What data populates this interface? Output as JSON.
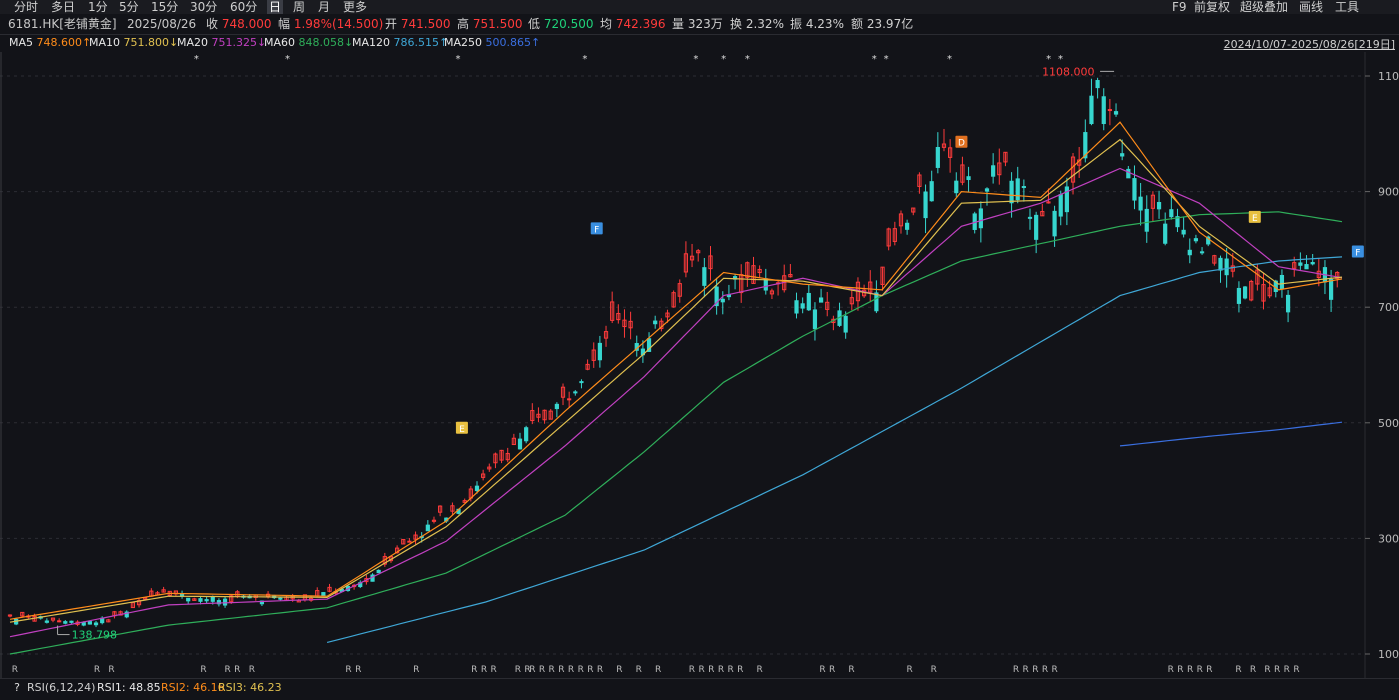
{
  "toolbar": {
    "timeframes": [
      "分时",
      "多日",
      "1分",
      "5分",
      "15分",
      "30分",
      "60分",
      "日",
      "周",
      "月",
      "更多"
    ],
    "active": "日",
    "tools": [
      "F9",
      "前复权",
      "超级叠加",
      "画线",
      "工具"
    ]
  },
  "quote": {
    "code": "6181.HK[老铺黄金]",
    "date": "2025/08/26",
    "close_label": "收",
    "close": "748.000",
    "change_label": "幅",
    "change": "1.98%(14.500)",
    "open_label": "开",
    "open": "741.500",
    "high_label": "高",
    "high": "751.500",
    "low_label": "低",
    "low": "720.500",
    "avg_label": "均",
    "avg": "742.396",
    "volume_label": "量",
    "volume": "323万",
    "turnover_label": "换",
    "turnover": "2.32%",
    "amplitude_label": "振",
    "amplitude": "4.23%",
    "amount_label": "额",
    "amount": "23.97亿"
  },
  "ma_legend": [
    {
      "name": "MA5",
      "value": "748.600↑",
      "color": "#ffffff",
      "vcolor": "#ff8c1a"
    },
    {
      "name": "MA10",
      "value": "751.800↓",
      "color": "#ffffff",
      "vcolor": "#e0c050"
    },
    {
      "name": "MA20",
      "value": "751.325↓",
      "color": "#ffffff",
      "vcolor": "#c040c0"
    },
    {
      "name": "MA60",
      "value": "848.058↓",
      "color": "#ffffff",
      "vcolor": "#2fae5a"
    },
    {
      "name": "MA120",
      "value": "786.515↑",
      "color": "#ffffff",
      "vcolor": "#3fa7d6"
    },
    {
      "name": "MA250",
      "value": "500.865↑",
      "color": "#ffffff",
      "vcolor": "#3a6fe0"
    }
  ],
  "date_range": "2024/10/07-2025/08/26[219日]",
  "indicator": {
    "help": "?",
    "name": "RSI(6,12,24)",
    "rsi1_label": "RSI1:",
    "rsi1": "48.85",
    "rsi2_label": "RSI2:",
    "rsi2": "46.16",
    "rsi3_label": "RSI3:",
    "rsi3": "46.23"
  },
  "chart_data": {
    "type": "candlestick",
    "ylim": [
      100,
      1130
    ],
    "yticks": [
      100,
      300,
      500,
      700,
      900,
      1100
    ],
    "y_tick_labels": [
      "100",
      "300",
      "500",
      "700",
      "900",
      "1100"
    ],
    "high_annotation": "1108.000",
    "low_annotation": "138.798",
    "close_path": [
      [
        0,
        165
      ],
      [
        8,
        160
      ],
      [
        16,
        155
      ],
      [
        24,
        158
      ],
      [
        32,
        180
      ],
      [
        38,
        212
      ],
      [
        44,
        200
      ],
      [
        52,
        193
      ],
      [
        60,
        198
      ],
      [
        68,
        196
      ],
      [
        74,
        190
      ],
      [
        80,
        205
      ],
      [
        86,
        212
      ],
      [
        92,
        240
      ],
      [
        98,
        282
      ],
      [
        104,
        310
      ],
      [
        110,
        345
      ],
      [
        116,
        372
      ],
      [
        122,
        420
      ],
      [
        128,
        470
      ],
      [
        134,
        505
      ],
      [
        140,
        540
      ],
      [
        146,
        610
      ],
      [
        150,
        660
      ],
      [
        156,
        680
      ],
      [
        160,
        620
      ],
      [
        166,
        700
      ],
      [
        170,
        750
      ],
      [
        174,
        800
      ],
      [
        178,
        740
      ],
      [
        182,
        730
      ],
      [
        188,
        760
      ],
      [
        192,
        740
      ],
      [
        198,
        730
      ],
      [
        204,
        700
      ],
      [
        210,
        680
      ],
      [
        214,
        700
      ],
      [
        220,
        760
      ],
      [
        224,
        820
      ],
      [
        228,
        860
      ],
      [
        232,
        930
      ],
      [
        236,
        1000
      ],
      [
        240,
        920
      ],
      [
        244,
        880
      ],
      [
        250,
        950
      ],
      [
        256,
        880
      ],
      [
        262,
        870
      ],
      [
        266,
        900
      ],
      [
        270,
        980
      ],
      [
        274,
        1080
      ],
      [
        278,
        1040
      ],
      [
        282,
        960
      ],
      [
        286,
        900
      ],
      [
        292,
        860
      ],
      [
        298,
        820
      ],
      [
        302,
        800
      ],
      [
        306,
        780
      ],
      [
        310,
        740
      ],
      [
        314,
        730
      ],
      [
        318,
        720
      ],
      [
        322,
        740
      ],
      [
        326,
        760
      ],
      [
        330,
        770
      ],
      [
        334,
        740
      ],
      [
        336,
        748
      ]
    ],
    "ma5": [
      [
        0,
        160
      ],
      [
        40,
        205
      ],
      [
        80,
        200
      ],
      [
        110,
        330
      ],
      [
        140,
        520
      ],
      [
        160,
        640
      ],
      [
        180,
        760
      ],
      [
        200,
        740
      ],
      [
        220,
        730
      ],
      [
        240,
        900
      ],
      [
        260,
        890
      ],
      [
        280,
        1020
      ],
      [
        300,
        830
      ],
      [
        320,
        730
      ],
      [
        336,
        749
      ]
    ],
    "ma10": [
      [
        0,
        155
      ],
      [
        40,
        200
      ],
      [
        80,
        198
      ],
      [
        110,
        320
      ],
      [
        140,
        500
      ],
      [
        160,
        620
      ],
      [
        180,
        750
      ],
      [
        200,
        745
      ],
      [
        220,
        720
      ],
      [
        240,
        880
      ],
      [
        260,
        885
      ],
      [
        280,
        990
      ],
      [
        300,
        840
      ],
      [
        320,
        740
      ],
      [
        336,
        752
      ]
    ],
    "ma20": [
      [
        0,
        130
      ],
      [
        40,
        185
      ],
      [
        80,
        195
      ],
      [
        110,
        295
      ],
      [
        140,
        460
      ],
      [
        160,
        580
      ],
      [
        180,
        720
      ],
      [
        200,
        750
      ],
      [
        220,
        720
      ],
      [
        240,
        840
      ],
      [
        260,
        880
      ],
      [
        280,
        940
      ],
      [
        300,
        880
      ],
      [
        320,
        770
      ],
      [
        336,
        751
      ]
    ],
    "ma60": [
      [
        0,
        100
      ],
      [
        40,
        150
      ],
      [
        80,
        180
      ],
      [
        110,
        240
      ],
      [
        140,
        340
      ],
      [
        160,
        450
      ],
      [
        180,
        570
      ],
      [
        200,
        650
      ],
      [
        220,
        720
      ],
      [
        240,
        780
      ],
      [
        260,
        810
      ],
      [
        280,
        840
      ],
      [
        300,
        860
      ],
      [
        320,
        865
      ],
      [
        336,
        848
      ]
    ],
    "ma120": [
      [
        80,
        120
      ],
      [
        120,
        190
      ],
      [
        160,
        280
      ],
      [
        200,
        410
      ],
      [
        240,
        560
      ],
      [
        280,
        720
      ],
      [
        300,
        760
      ],
      [
        320,
        780
      ],
      [
        336,
        787
      ]
    ],
    "ma250": [
      [
        280,
        460
      ],
      [
        300,
        475
      ],
      [
        320,
        488
      ],
      [
        336,
        501
      ]
    ],
    "bottom_markers": "R",
    "top_markers": "*",
    "signal_labels": [
      "E",
      "F",
      "D",
      "E",
      "F"
    ]
  }
}
